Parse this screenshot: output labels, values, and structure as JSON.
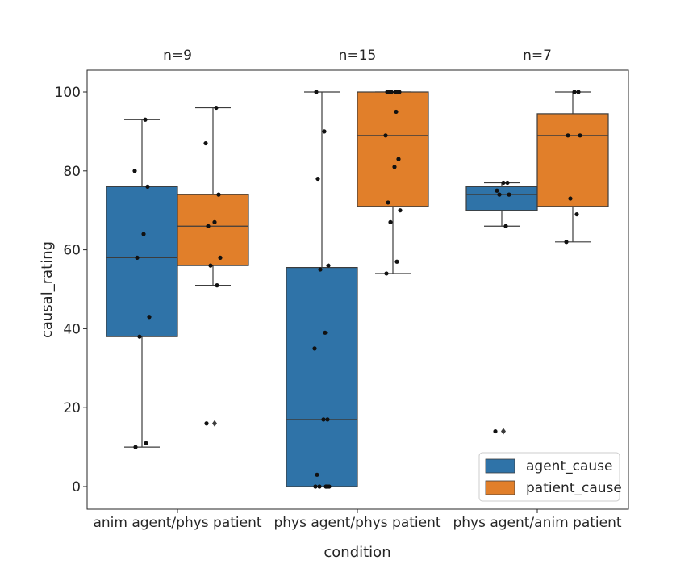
{
  "chart_data": {
    "type": "box",
    "xlabel": "condition",
    "ylabel": "causal_rating",
    "ylim": [
      -5,
      105
    ],
    "yticks": [
      0,
      20,
      40,
      60,
      80,
      100
    ],
    "grid": false,
    "legend_position": "bottom-right",
    "categories": [
      "anim agent/phys patient",
      "phys agent/phys patient",
      "phys agent/anim patient"
    ],
    "n_labels": [
      "n=9",
      "n=15",
      "n=7"
    ],
    "series": [
      {
        "name": "agent_cause",
        "color": "#2f73a8",
        "boxes": [
          {
            "q1": 38,
            "median": 58,
            "q3": 76,
            "whisker_low": 10,
            "whisker_high": 93,
            "outliers": []
          },
          {
            "q1": 0,
            "median": 17,
            "q3": 55.5,
            "whisker_low": 0,
            "whisker_high": 100,
            "outliers": []
          },
          {
            "q1": 70,
            "median": 74,
            "q3": 76,
            "whisker_low": 66,
            "whisker_high": 77,
            "outliers": [
              14
            ]
          }
        ],
        "points": [
          [
            10,
            11,
            38,
            43,
            58,
            64,
            76,
            80,
            93
          ],
          [
            0,
            0,
            0,
            0,
            3,
            17,
            17,
            35,
            39,
            55,
            56,
            78,
            90,
            100,
            0
          ],
          [
            14,
            66,
            74,
            74,
            75,
            77,
            77
          ]
        ]
      },
      {
        "name": "patient_cause",
        "color": "#e17f2a",
        "boxes": [
          {
            "q1": 56,
            "median": 66,
            "q3": 74,
            "whisker_low": 51,
            "whisker_high": 96,
            "outliers": [
              16
            ]
          },
          {
            "q1": 71,
            "median": 89,
            "q3": 100,
            "whisker_low": 54,
            "whisker_high": 100,
            "outliers": []
          },
          {
            "q1": 71,
            "median": 89,
            "q3": 94.5,
            "whisker_low": 62,
            "whisker_high": 100,
            "outliers": []
          }
        ],
        "points": [
          [
            16,
            51,
            56,
            58,
            66,
            67,
            74,
            87,
            96
          ],
          [
            54,
            57,
            67,
            70,
            72,
            81,
            83,
            89,
            95,
            100,
            100,
            100,
            100,
            100,
            100
          ],
          [
            62,
            69,
            73,
            89,
            89,
            100,
            100
          ]
        ]
      }
    ]
  }
}
